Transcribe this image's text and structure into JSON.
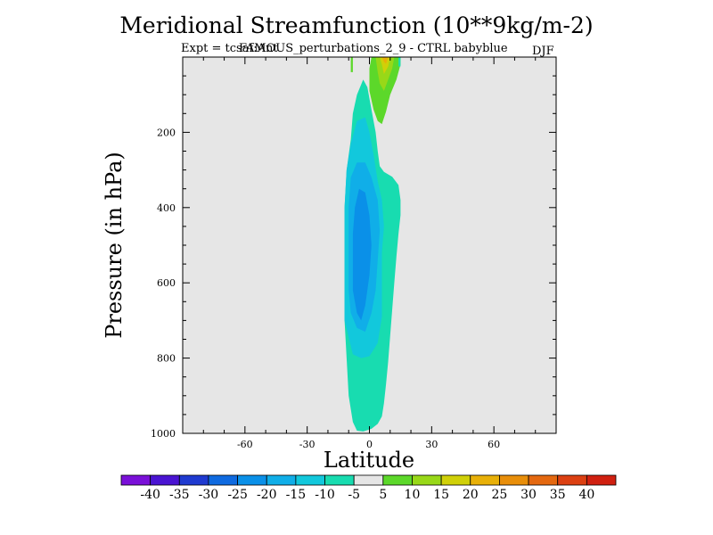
{
  "chart_data": {
    "type": "contour",
    "title": "Meridional Streamfunction (10**9kg/m-2)",
    "subtitle_left": "Expt = tcsaf:Ant",
    "subtitle_overlay": "FAMOUS_perturbations_2_9 - CTRL babyblue",
    "season": "DJF",
    "xlabel": "Latitude",
    "ylabel": "Pressure (in hPa)",
    "xlim": [
      -90,
      90
    ],
    "ylim": [
      1000,
      0
    ],
    "y_inverted": true,
    "x_ticks": [
      -60,
      -30,
      0,
      30,
      60
    ],
    "y_ticks": [
      200,
      400,
      600,
      800,
      1000
    ],
    "background_color": "#e6e6e6",
    "colorbar": {
      "boundaries": [
        "-40",
        "-35",
        "-30",
        "-25",
        "-20",
        "-15",
        "-10",
        "-5",
        "5",
        "10",
        "15",
        "20",
        "25",
        "30",
        "35",
        "40"
      ],
      "colors": [
        "#7a10d8",
        "#4a14d2",
        "#1f3ad0",
        "#0f6ae0",
        "#0a90e8",
        "#10aee8",
        "#12c8dc",
        "#18dcb0",
        "#e6e6e6",
        "#5cd82a",
        "#98d818",
        "#d0d008",
        "#e8b008",
        "#e88e0a",
        "#e46810",
        "#dc4012",
        "#d02010"
      ]
    },
    "contours": [
      {
        "level": "-10 to -5",
        "color": "#18dcb0",
        "points": [
          [
            -6,
            993
          ],
          [
            -3,
            995
          ],
          [
            1,
            988
          ],
          [
            4,
            975
          ],
          [
            6,
            955
          ],
          [
            7,
            920
          ],
          [
            8,
            870
          ],
          [
            9,
            810
          ],
          [
            10,
            740
          ],
          [
            11,
            670
          ],
          [
            12,
            600
          ],
          [
            13,
            530
          ],
          [
            14,
            470
          ],
          [
            15,
            420
          ],
          [
            15,
            380
          ],
          [
            14,
            340
          ],
          [
            11,
            318
          ],
          [
            7,
            305
          ],
          [
            5,
            290
          ],
          [
            4,
            250
          ],
          [
            3,
            200
          ],
          [
            1,
            140
          ],
          [
            -1,
            80
          ],
          [
            -3,
            60
          ],
          [
            -6,
            100
          ],
          [
            -8,
            150
          ],
          [
            -9,
            220
          ],
          [
            -11,
            300
          ],
          [
            -12,
            400
          ],
          [
            -12,
            500
          ],
          [
            -12,
            600
          ],
          [
            -12,
            700
          ],
          [
            -11,
            800
          ],
          [
            -10,
            900
          ],
          [
            -8,
            970
          ]
        ]
      },
      {
        "level": "-15 to -10",
        "color": "#12c8dc",
        "points": [
          [
            -8,
            790
          ],
          [
            -12,
            700
          ],
          [
            -12,
            600
          ],
          [
            -12,
            500
          ],
          [
            -12,
            400
          ],
          [
            -11,
            300
          ],
          [
            -9,
            230
          ],
          [
            -6,
            170
          ],
          [
            -2,
            160
          ],
          [
            0,
            200
          ],
          [
            2,
            260
          ],
          [
            4,
            330
          ],
          [
            6,
            380
          ],
          [
            7,
            450
          ],
          [
            6,
            520
          ],
          [
            6,
            600
          ],
          [
            6,
            690
          ],
          [
            4,
            760
          ],
          [
            0,
            795
          ],
          [
            -4,
            800
          ]
        ]
      },
      {
        "level": "-20 to -15",
        "color": "#10aee8",
        "points": [
          [
            -10,
            620
          ],
          [
            -10,
            500
          ],
          [
            -10,
            400
          ],
          [
            -9,
            320
          ],
          [
            -6,
            280
          ],
          [
            -2,
            280
          ],
          [
            1,
            320
          ],
          [
            4,
            380
          ],
          [
            5,
            460
          ],
          [
            4,
            540
          ],
          [
            3,
            620
          ],
          [
            1,
            680
          ],
          [
            -2,
            730
          ],
          [
            -6,
            720
          ],
          [
            -9,
            680
          ]
        ]
      },
      {
        "level": "-25 to -20",
        "color": "#0a90e8",
        "points": [
          [
            -8,
            560
          ],
          [
            -8,
            470
          ],
          [
            -7,
            400
          ],
          [
            -5,
            350
          ],
          [
            -2,
            360
          ],
          [
            0,
            420
          ],
          [
            1,
            500
          ],
          [
            0,
            580
          ],
          [
            -2,
            660
          ],
          [
            -4,
            700
          ],
          [
            -6,
            680
          ],
          [
            -8,
            620
          ]
        ]
      },
      {
        "level": "5 to 10",
        "color": "#5cd82a",
        "points": [
          [
            1,
            0
          ],
          [
            15,
            0
          ],
          [
            15,
            20
          ],
          [
            13,
            60
          ],
          [
            10,
            100
          ],
          [
            8,
            145
          ],
          [
            6,
            178
          ],
          [
            4,
            170
          ],
          [
            2,
            140
          ],
          [
            0,
            90
          ],
          [
            0,
            30
          ]
        ]
      },
      {
        "level": "10 to 15",
        "color": "#98d818",
        "points": [
          [
            3,
            0
          ],
          [
            12,
            0
          ],
          [
            11,
            30
          ],
          [
            9,
            60
          ],
          [
            7,
            90
          ],
          [
            5,
            70
          ],
          [
            4,
            40
          ]
        ]
      },
      {
        "level": "15 to 20",
        "color": "#d0d008",
        "points": [
          [
            5,
            0
          ],
          [
            10,
            0
          ],
          [
            9,
            25
          ],
          [
            7,
            45
          ],
          [
            6,
            20
          ]
        ]
      },
      {
        "level": "20 to 25",
        "color": "#e8b008",
        "points": [
          [
            6,
            0
          ],
          [
            9,
            0
          ],
          [
            8,
            18
          ],
          [
            7,
            12
          ]
        ]
      },
      {
        "level": "5 to 10",
        "color": "#5cd82a",
        "points": [
          [
            -9,
            0
          ],
          [
            -8,
            0
          ],
          [
            -8,
            40
          ],
          [
            -9,
            40
          ]
        ]
      },
      {
        "level": "-10 to -5",
        "color": "#18dcb0",
        "points": [
          [
            14,
            0
          ],
          [
            15,
            0
          ],
          [
            15,
            25
          ],
          [
            14,
            25
          ]
        ]
      }
    ]
  }
}
